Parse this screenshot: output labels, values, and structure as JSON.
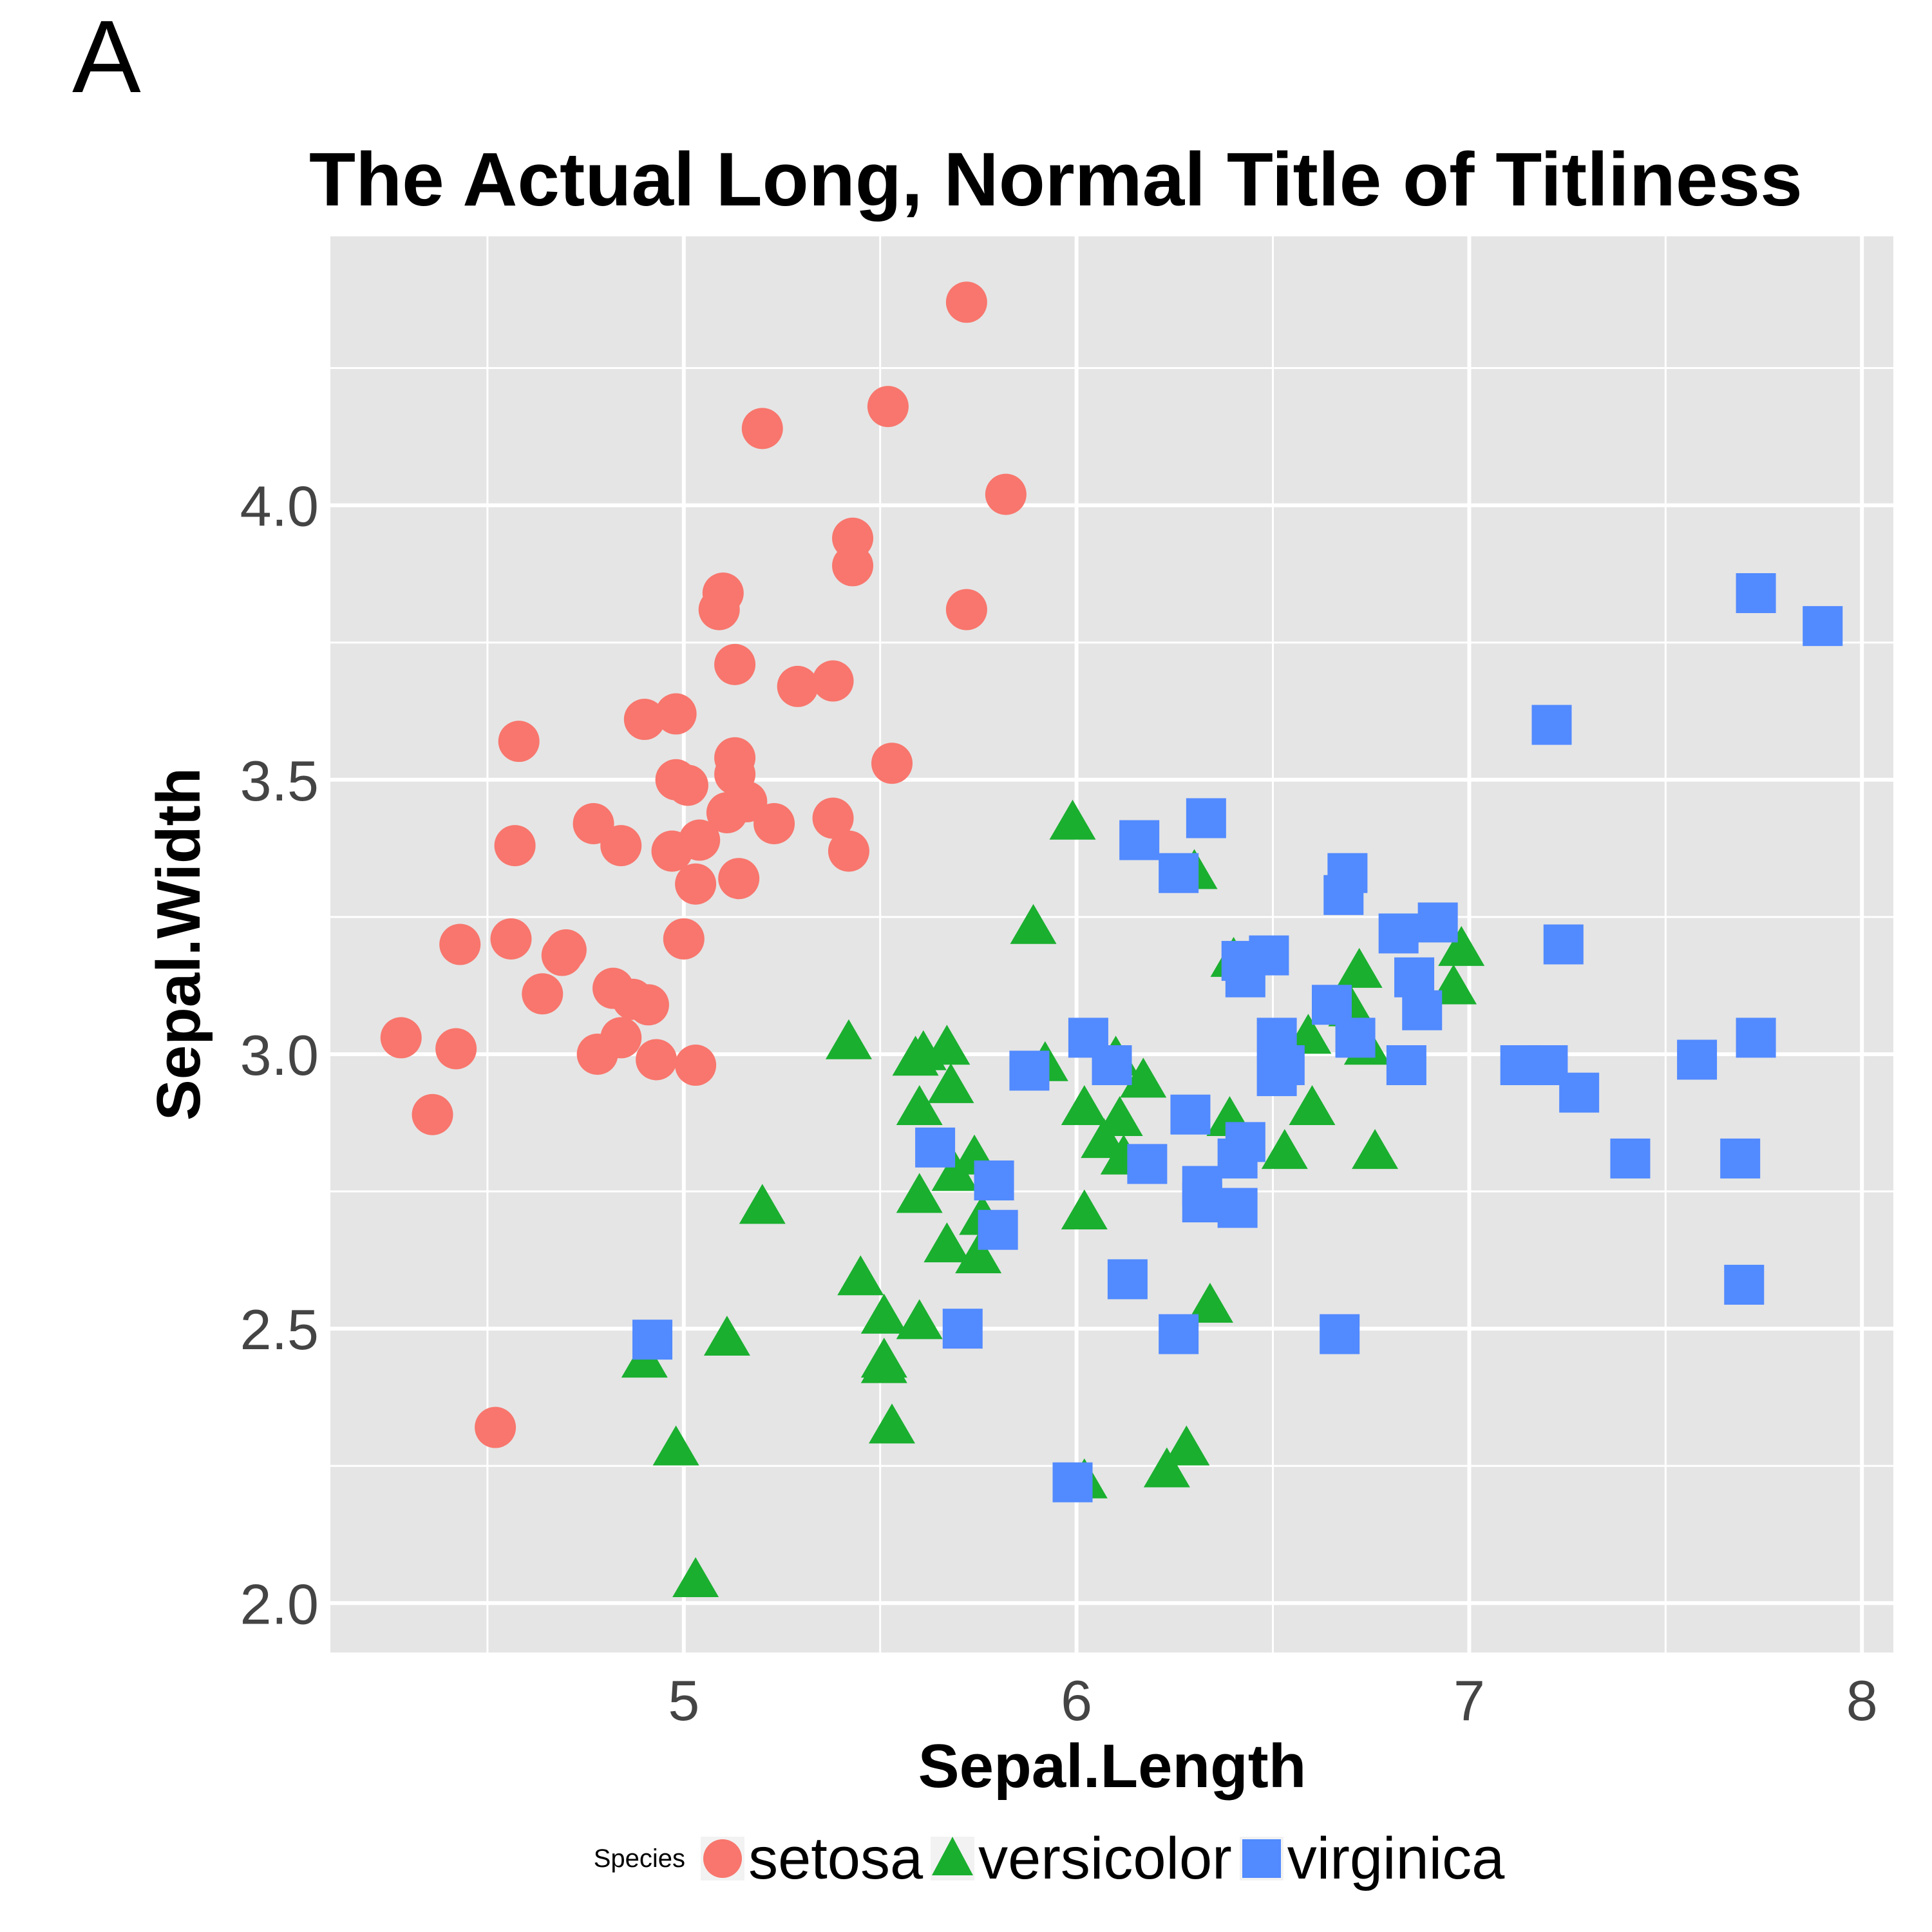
{
  "panel_label": "A",
  "chart_data": {
    "type": "scatter",
    "title": "The Actual Long, Normal Title of Titliness",
    "xlabel": "Sepal.Length",
    "ylabel": "Sepal.Width",
    "xlim": [
      4.1,
      8.08
    ],
    "ylim": [
      1.91,
      4.49
    ],
    "x_ticks": [
      5,
      6,
      7,
      8
    ],
    "x_tick_labels": [
      "5",
      "6",
      "7",
      "8"
    ],
    "x_minor": [
      4.5,
      5.5,
      6.5,
      7.5
    ],
    "y_ticks": [
      2.0,
      2.5,
      3.0,
      3.5,
      4.0
    ],
    "y_tick_labels": [
      "2.0",
      "2.5",
      "3.0",
      "3.5",
      "4.0"
    ],
    "y_minor": [
      2.25,
      2.75,
      3.25,
      3.75,
      4.25
    ],
    "grid": true,
    "legend": {
      "title": "Species",
      "placement": "bottom",
      "entries": [
        "setosa",
        "versicolor",
        "virginica"
      ]
    },
    "series": [
      {
        "name": "setosa",
        "shape": "circle",
        "color": "#F8766D",
        "points": [
          [
            5.72,
            4.37
          ],
          [
            5.52,
            4.18
          ],
          [
            5.2,
            4.14
          ],
          [
            5.82,
            4.02
          ],
          [
            5.43,
            3.94
          ],
          [
            5.43,
            3.89
          ],
          [
            5.1,
            3.84
          ],
          [
            5.09,
            3.81
          ],
          [
            5.72,
            3.81
          ],
          [
            5.13,
            3.71
          ],
          [
            5.29,
            3.67
          ],
          [
            5.38,
            3.68
          ],
          [
            4.9,
            3.61
          ],
          [
            4.98,
            3.62
          ],
          [
            4.58,
            3.57
          ],
          [
            5.13,
            3.54
          ],
          [
            5.53,
            3.53
          ],
          [
            4.98,
            3.5
          ],
          [
            5.01,
            3.49
          ],
          [
            5.13,
            3.51
          ],
          [
            5.16,
            3.46
          ],
          [
            5.11,
            3.44
          ],
          [
            5.23,
            3.42
          ],
          [
            5.38,
            3.43
          ],
          [
            4.77,
            3.42
          ],
          [
            4.84,
            3.38
          ],
          [
            4.97,
            3.37
          ],
          [
            5.04,
            3.39
          ],
          [
            4.57,
            3.38
          ],
          [
            5.42,
            3.37
          ],
          [
            5.03,
            3.31
          ],
          [
            5.14,
            3.32
          ],
          [
            4.43,
            3.2
          ],
          [
            4.56,
            3.21
          ],
          [
            5.0,
            3.21
          ],
          [
            4.69,
            3.18
          ],
          [
            4.7,
            3.19
          ],
          [
            4.64,
            3.11
          ],
          [
            4.82,
            3.12
          ],
          [
            4.87,
            3.1
          ],
          [
            4.91,
            3.09
          ],
          [
            4.84,
            3.03
          ],
          [
            4.28,
            3.03
          ],
          [
            4.42,
            3.01
          ],
          [
            4.78,
            3.0
          ],
          [
            4.93,
            2.99
          ],
          [
            5.03,
            2.98
          ],
          [
            4.36,
            2.89
          ],
          [
            4.52,
            2.32
          ]
        ]
      },
      {
        "name": "versicolor",
        "shape": "triangle",
        "color": "#1AAF2F",
        "points": [
          [
            5.99,
            3.42
          ],
          [
            6.3,
            3.33
          ],
          [
            5.89,
            3.23
          ],
          [
            6.4,
            3.17
          ],
          [
            6.72,
            3.15
          ],
          [
            6.98,
            3.19
          ],
          [
            6.96,
            3.12
          ],
          [
            6.7,
            3.08
          ],
          [
            6.59,
            3.03
          ],
          [
            6.74,
            3.01
          ],
          [
            5.42,
            3.02
          ],
          [
            5.61,
            3.0
          ],
          [
            5.67,
            3.01
          ],
          [
            5.59,
            2.99
          ],
          [
            5.92,
            2.98
          ],
          [
            6.1,
            2.99
          ],
          [
            6.17,
            2.95
          ],
          [
            5.68,
            2.94
          ],
          [
            5.6,
            2.9
          ],
          [
            6.02,
            2.9
          ],
          [
            6.11,
            2.88
          ],
          [
            6.6,
            2.9
          ],
          [
            6.39,
            2.88
          ],
          [
            6.53,
            2.82
          ],
          [
            6.07,
            2.84
          ],
          [
            6.12,
            2.81
          ],
          [
            5.74,
            2.81
          ],
          [
            6.76,
            2.82
          ],
          [
            5.69,
            2.78
          ],
          [
            5.6,
            2.74
          ],
          [
            5.2,
            2.72
          ],
          [
            6.02,
            2.71
          ],
          [
            5.76,
            2.7
          ],
          [
            5.67,
            2.65
          ],
          [
            5.75,
            2.63
          ],
          [
            5.45,
            2.59
          ],
          [
            5.51,
            2.52
          ],
          [
            5.6,
            2.51
          ],
          [
            6.34,
            2.54
          ],
          [
            5.11,
            2.48
          ],
          [
            4.9,
            2.44
          ],
          [
            5.51,
            2.44
          ],
          [
            5.51,
            2.43
          ],
          [
            5.53,
            2.32
          ],
          [
            4.98,
            2.28
          ],
          [
            6.28,
            2.28
          ],
          [
            6.23,
            2.24
          ],
          [
            6.02,
            2.22
          ],
          [
            5.03,
            2.04
          ]
        ]
      },
      {
        "name": "virginica",
        "shape": "square",
        "color": "#528AFF",
        "points": [
          [
            7.73,
            3.84
          ],
          [
            7.9,
            3.78
          ],
          [
            7.21,
            3.6
          ],
          [
            6.33,
            3.43
          ],
          [
            6.16,
            3.39
          ],
          [
            6.26,
            3.33
          ],
          [
            6.69,
            3.33
          ],
          [
            6.68,
            3.29
          ],
          [
            6.92,
            3.24
          ],
          [
            6.82,
            3.22
          ],
          [
            7.24,
            3.2
          ],
          [
            6.49,
            3.18
          ],
          [
            6.42,
            3.17
          ],
          [
            6.43,
            3.14
          ],
          [
            6.86,
            3.14
          ],
          [
            6.88,
            3.08
          ],
          [
            6.65,
            3.09
          ],
          [
            6.71,
            3.03
          ],
          [
            6.51,
            3.03
          ],
          [
            6.03,
            3.03
          ],
          [
            7.73,
            3.03
          ],
          [
            6.53,
            2.98
          ],
          [
            6.51,
            2.96
          ],
          [
            6.84,
            2.98
          ],
          [
            7.13,
            2.98
          ],
          [
            7.2,
            2.98
          ],
          [
            7.58,
            2.99
          ],
          [
            6.09,
            2.98
          ],
          [
            5.88,
            2.97
          ],
          [
            7.28,
            2.93
          ],
          [
            6.29,
            2.89
          ],
          [
            5.64,
            2.83
          ],
          [
            6.43,
            2.84
          ],
          [
            6.41,
            2.81
          ],
          [
            6.18,
            2.8
          ],
          [
            7.41,
            2.81
          ],
          [
            7.69,
            2.81
          ],
          [
            5.79,
            2.77
          ],
          [
            6.32,
            2.76
          ],
          [
            6.32,
            2.73
          ],
          [
            6.41,
            2.72
          ],
          [
            5.8,
            2.68
          ],
          [
            6.13,
            2.59
          ],
          [
            7.7,
            2.58
          ],
          [
            5.71,
            2.5
          ],
          [
            6.26,
            2.49
          ],
          [
            6.67,
            2.49
          ],
          [
            4.92,
            2.48
          ],
          [
            5.99,
            2.22
          ]
        ]
      }
    ]
  },
  "colors": {
    "panel_background": "#E5E5E5",
    "gridline": "#FFFFFF",
    "tick_label": "#444444",
    "legend_key_background": "#F2F2F2"
  }
}
